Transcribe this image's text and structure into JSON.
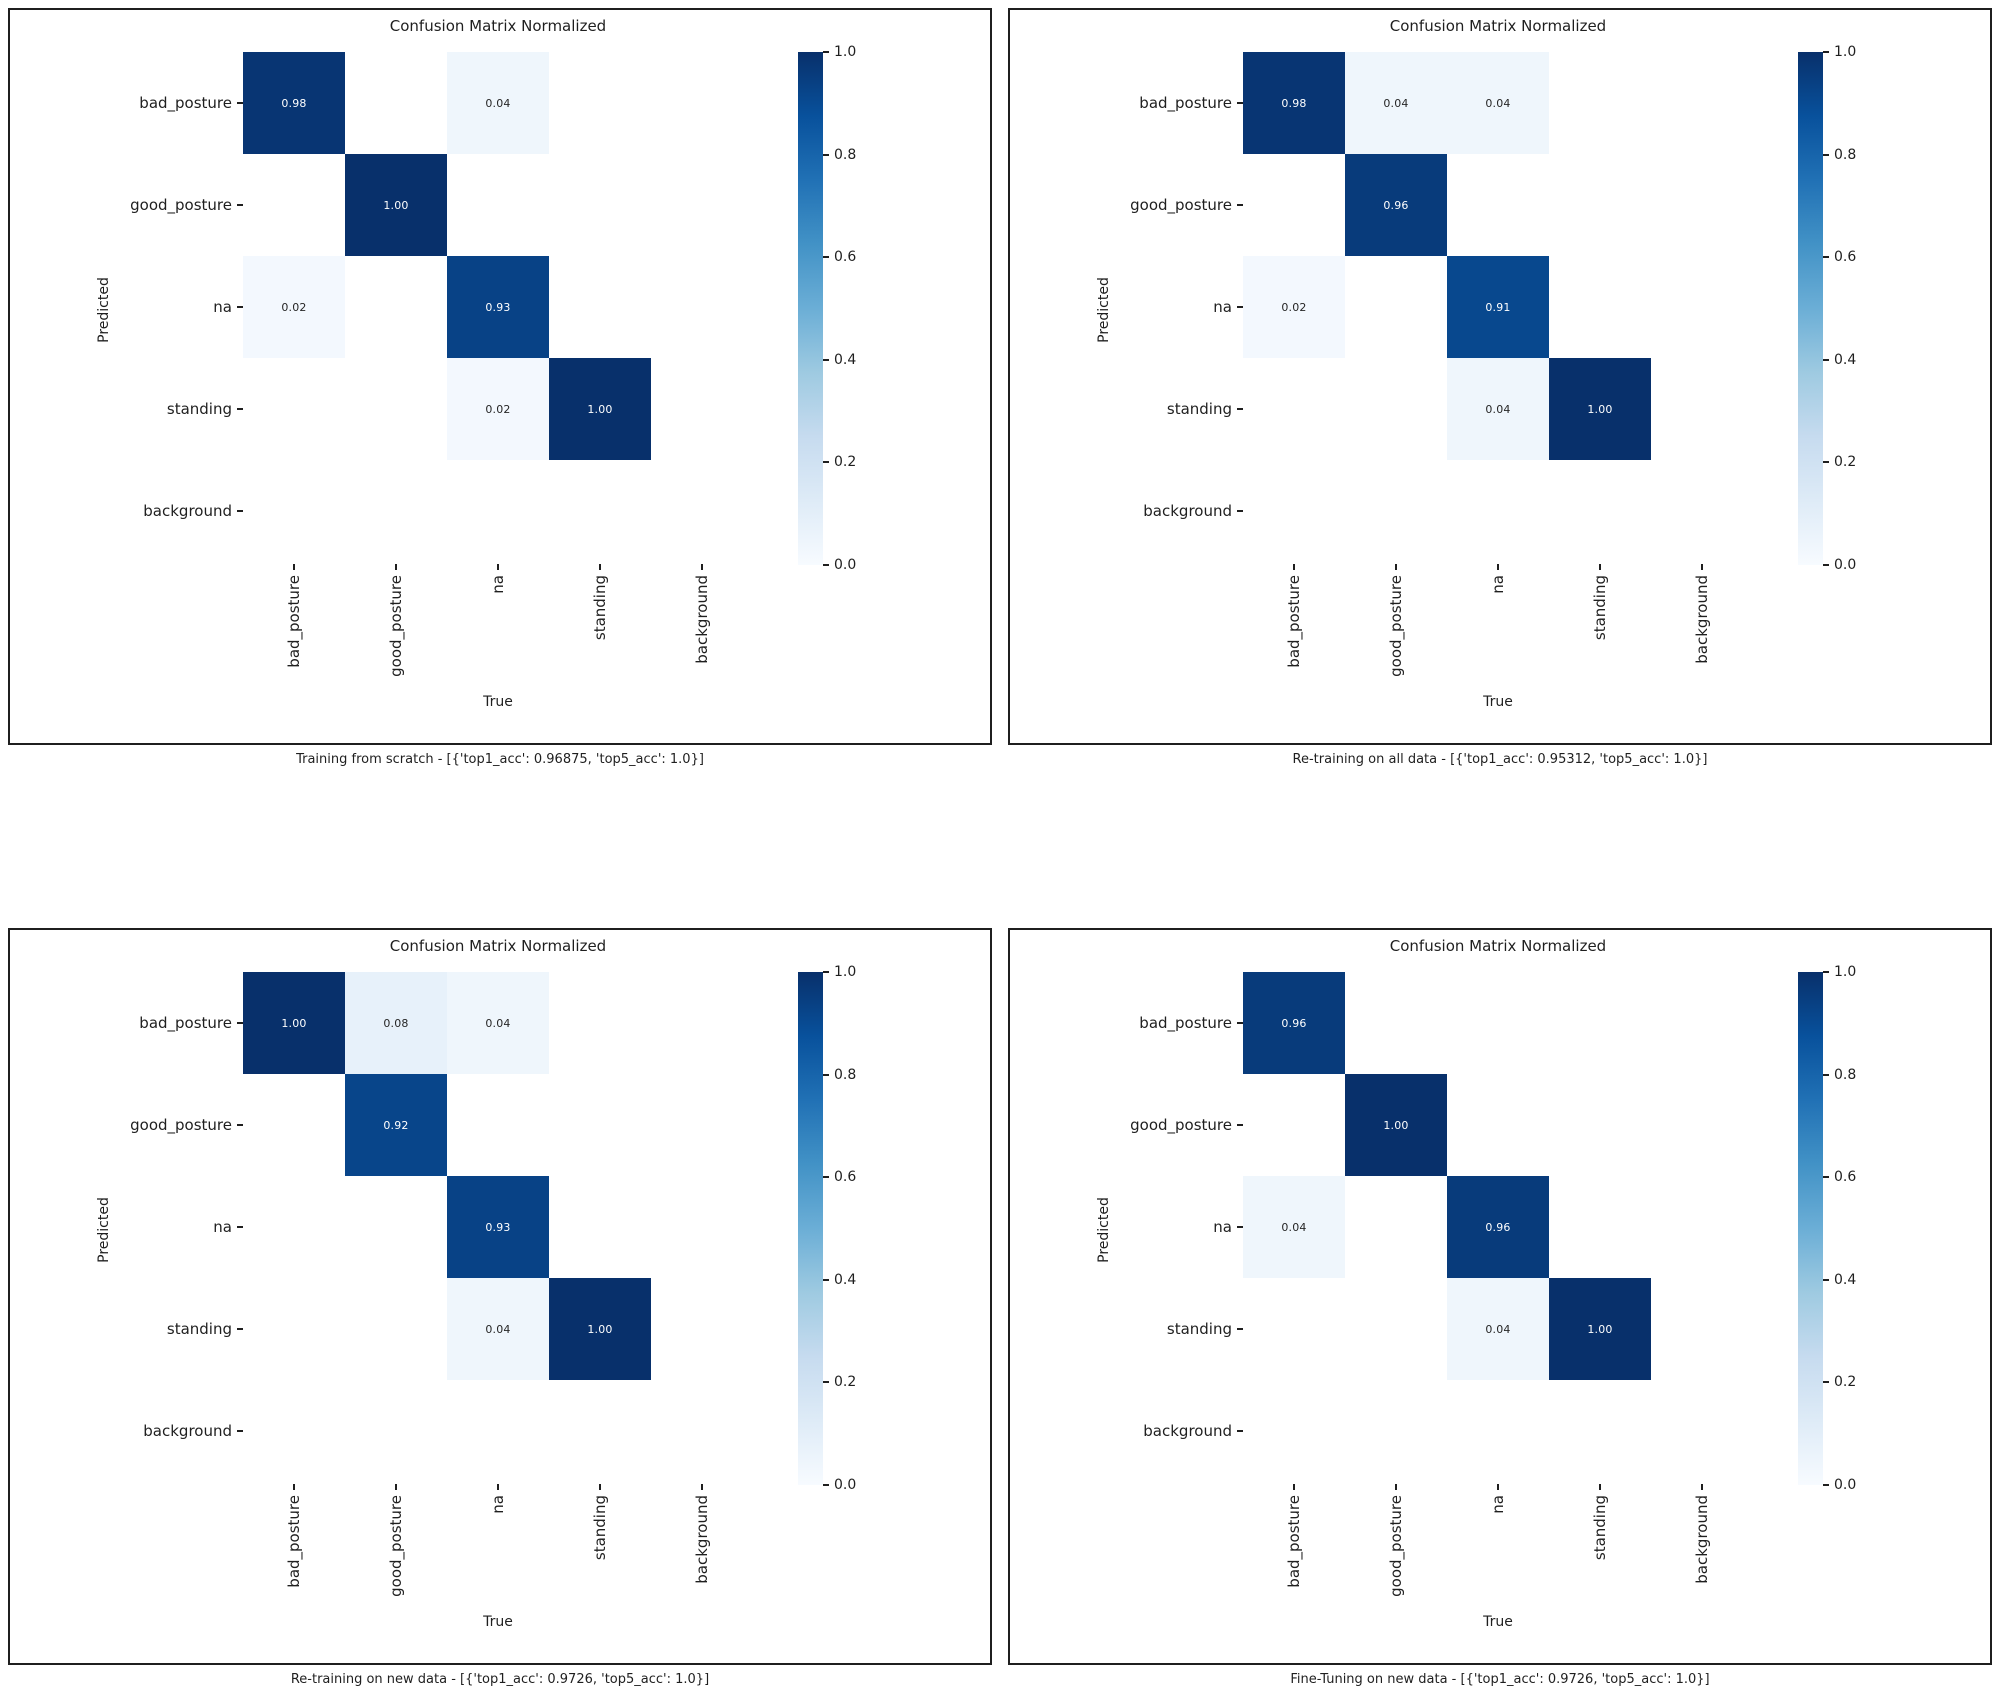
{
  "figure": {
    "background_color": "#ffffff",
    "panel_border_color": "#1f1f1f",
    "text_color": "#1f1f1f",
    "colormap_name": "Blues",
    "colormap_stops": [
      "#f7fbff",
      "#deebf7",
      "#c6dbef",
      "#9ecae1",
      "#6baed6",
      "#4292c6",
      "#2171b5",
      "#08519c",
      "#08306b"
    ],
    "cell_text_dark": "#262626",
    "cell_text_light": "#ffffff"
  },
  "chart_data": [
    {
      "type": "heatmap",
      "title": "Confusion Matrix Normalized",
      "xlabel": "True",
      "ylabel": "Predicted",
      "caption": "Training from scratch - [{'top1_acc': 0.96875, 'top5_acc': 1.0}]",
      "categories": [
        "bad_posture",
        "good_posture",
        "na",
        "standing",
        "background"
      ],
      "values": [
        [
          0.98,
          null,
          0.04,
          null,
          null
        ],
        [
          null,
          1.0,
          null,
          null,
          null
        ],
        [
          0.02,
          null,
          0.93,
          null,
          null
        ],
        [
          null,
          null,
          0.02,
          1.0,
          null
        ],
        [
          null,
          null,
          null,
          null,
          null
        ]
      ],
      "cell_labels": [
        [
          "0.98",
          null,
          "0.04",
          null,
          null
        ],
        [
          null,
          "1.00",
          null,
          null,
          null
        ],
        [
          "0.02",
          null,
          "0.93",
          null,
          null
        ],
        [
          null,
          null,
          "0.02",
          "1.00",
          null
        ],
        [
          null,
          null,
          null,
          null,
          null
        ]
      ],
      "zlim": [
        0,
        1
      ],
      "colorbar_ticks": [
        "1.0",
        "0.8",
        "0.6",
        "0.4",
        "0.2",
        "0.0"
      ]
    },
    {
      "type": "heatmap",
      "title": "Confusion Matrix Normalized",
      "xlabel": "True",
      "ylabel": "Predicted",
      "caption": "Re-training on all data - [{'top1_acc': 0.95312, 'top5_acc': 1.0}]",
      "categories": [
        "bad_posture",
        "good_posture",
        "na",
        "standing",
        "background"
      ],
      "values": [
        [
          0.98,
          0.04,
          0.04,
          null,
          null
        ],
        [
          null,
          0.96,
          null,
          null,
          null
        ],
        [
          0.02,
          null,
          0.91,
          null,
          null
        ],
        [
          null,
          null,
          0.04,
          1.0,
          null
        ],
        [
          null,
          null,
          null,
          null,
          null
        ]
      ],
      "cell_labels": [
        [
          "0.98",
          "0.04",
          "0.04",
          null,
          null
        ],
        [
          null,
          "0.96",
          null,
          null,
          null
        ],
        [
          "0.02",
          null,
          "0.91",
          null,
          null
        ],
        [
          null,
          null,
          "0.04",
          "1.00",
          null
        ],
        [
          null,
          null,
          null,
          null,
          null
        ]
      ],
      "zlim": [
        0,
        1
      ],
      "colorbar_ticks": [
        "1.0",
        "0.8",
        "0.6",
        "0.4",
        "0.2",
        "0.0"
      ]
    },
    {
      "type": "heatmap",
      "title": "Confusion Matrix Normalized",
      "xlabel": "True",
      "ylabel": "Predicted",
      "caption": "Re-training on new data - [{'top1_acc': 0.9726, 'top5_acc': 1.0}]",
      "categories": [
        "bad_posture",
        "good_posture",
        "na",
        "standing",
        "background"
      ],
      "values": [
        [
          1.0,
          0.08,
          0.04,
          null,
          null
        ],
        [
          null,
          0.92,
          null,
          null,
          null
        ],
        [
          null,
          null,
          0.93,
          null,
          null
        ],
        [
          null,
          null,
          0.04,
          1.0,
          null
        ],
        [
          null,
          null,
          null,
          null,
          null
        ]
      ],
      "cell_labels": [
        [
          "1.00",
          "0.08",
          "0.04",
          null,
          null
        ],
        [
          null,
          "0.92",
          null,
          null,
          null
        ],
        [
          null,
          null,
          "0.93",
          null,
          null
        ],
        [
          null,
          null,
          "0.04",
          "1.00",
          null
        ],
        [
          null,
          null,
          null,
          null,
          null
        ]
      ],
      "zlim": [
        0,
        1
      ],
      "colorbar_ticks": [
        "1.0",
        "0.8",
        "0.6",
        "0.4",
        "0.2",
        "0.0"
      ]
    },
    {
      "type": "heatmap",
      "title": "Confusion Matrix Normalized",
      "xlabel": "True",
      "ylabel": "Predicted",
      "caption": "Fine-Tuning on new data - [{'top1_acc': 0.9726, 'top5_acc': 1.0}]",
      "categories": [
        "bad_posture",
        "good_posture",
        "na",
        "standing",
        "background"
      ],
      "values": [
        [
          0.96,
          null,
          null,
          null,
          null
        ],
        [
          null,
          1.0,
          null,
          null,
          null
        ],
        [
          0.04,
          null,
          0.96,
          null,
          null
        ],
        [
          null,
          null,
          0.04,
          1.0,
          null
        ],
        [
          null,
          null,
          null,
          null,
          null
        ]
      ],
      "cell_labels": [
        [
          "0.96",
          null,
          null,
          null,
          null
        ],
        [
          null,
          "1.00",
          null,
          null,
          null
        ],
        [
          "0.04",
          null,
          "0.96",
          null,
          null
        ],
        [
          null,
          null,
          "0.04",
          "1.00",
          null
        ],
        [
          null,
          null,
          null,
          null,
          null
        ]
      ],
      "zlim": [
        0,
        1
      ],
      "colorbar_ticks": [
        "1.0",
        "0.8",
        "0.6",
        "0.4",
        "0.2",
        "0.0"
      ]
    }
  ]
}
